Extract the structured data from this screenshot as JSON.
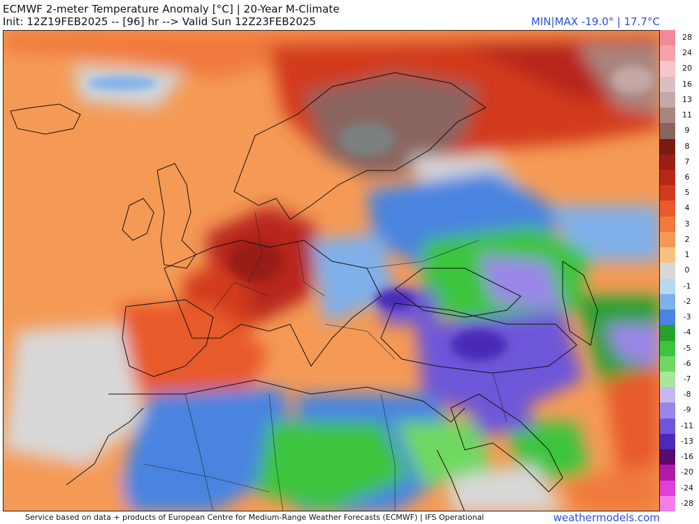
{
  "header": {
    "title": "ECMWF 2-meter Temperature Anomaly [°C] | 20-Year M-Climate",
    "subtitle": "Init: 12Z19FEB2025 -- [96] hr --> Valid Sun 12Z23FEB2025",
    "minmax": "MIN|MAX -19.0° | 17.7°C"
  },
  "legend": {
    "items": [
      {
        "label": "28",
        "color": "#f08a96"
      },
      {
        "label": "24",
        "color": "#f4a3ad"
      },
      {
        "label": "20",
        "color": "#f6c6cc"
      },
      {
        "label": "16",
        "color": "#d8c0c0"
      },
      {
        "label": "13",
        "color": "#c5a8a6"
      },
      {
        "label": "11",
        "color": "#a8857f"
      },
      {
        "label": "9",
        "color": "#8a6560"
      },
      {
        "label": "8",
        "color": "#7a1a12"
      },
      {
        "label": "7",
        "color": "#9a1f15"
      },
      {
        "label": "6",
        "color": "#b8281a"
      },
      {
        "label": "5",
        "color": "#d23a1e"
      },
      {
        "label": "4",
        "color": "#e85a2a"
      },
      {
        "label": "3",
        "color": "#f07a3c"
      },
      {
        "label": "2",
        "color": "#f59a55"
      },
      {
        "label": "1",
        "color": "#f8c27e"
      },
      {
        "label": "0",
        "color": "#d8d8d8"
      },
      {
        "label": "-1",
        "color": "#b6d8f2"
      },
      {
        "label": "-2",
        "color": "#80b0ea"
      },
      {
        "label": "-3",
        "color": "#4a84e0"
      },
      {
        "label": "-4",
        "color": "#26a02e"
      },
      {
        "label": "-5",
        "color": "#3ec43e"
      },
      {
        "label": "-6",
        "color": "#70d860"
      },
      {
        "label": "-7",
        "color": "#a8e6a0"
      },
      {
        "label": "-8",
        "color": "#c4b8f2"
      },
      {
        "label": "-9",
        "color": "#9a86e8"
      },
      {
        "label": "-11",
        "color": "#6e56d8"
      },
      {
        "label": "-13",
        "color": "#4a2ab8"
      },
      {
        "label": "-16",
        "color": "#5a0a6a"
      },
      {
        "label": "-20",
        "color": "#b01aa8"
      },
      {
        "label": "-24",
        "color": "#e040d8"
      },
      {
        "label": "-28",
        "color": "#f080e8"
      }
    ]
  },
  "footer": {
    "credit": "Service based on data + products of European Centre for Medium-Range Weather Forecasts (ECMWF) | IFS Operational",
    "brand": "weathermodels.com"
  }
}
